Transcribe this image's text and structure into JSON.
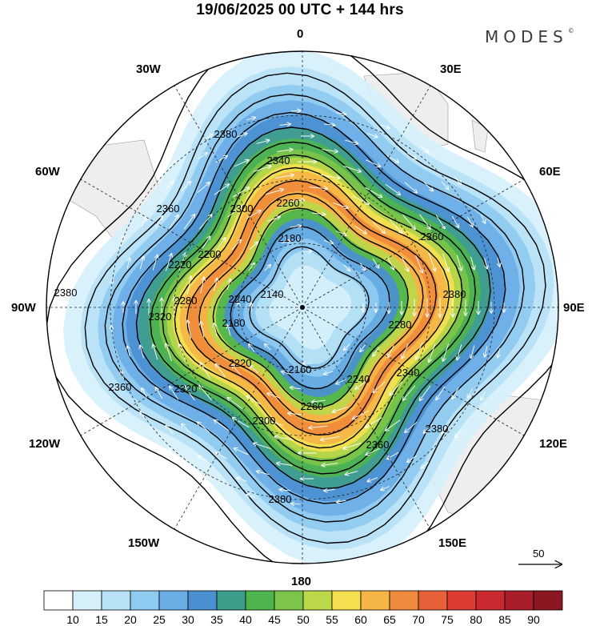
{
  "title": "19/06/2025  00 UTC  + 144 hrs",
  "logo": "MODES",
  "logo_mark": "©",
  "longitude_labels": {
    "top": "0",
    "bottom": "180",
    "left": "90W",
    "right": "90E",
    "upper_left_30": "30W",
    "upper_left_60": "60W",
    "upper_right_30": "30E",
    "upper_right_60": "60E",
    "lower_left_120": "120W",
    "lower_left_150": "150W",
    "lower_right_120": "120E",
    "lower_right_150": "150E"
  },
  "contour_labels": [
    "2140",
    "2160",
    "2180",
    "2200",
    "2220",
    "2240",
    "2260",
    "2280",
    "2300",
    "2320",
    "2340",
    "2360",
    "2380"
  ],
  "reference_vector": {
    "label": "50"
  },
  "colorbar": {
    "labels": [
      "10",
      "15",
      "20",
      "25",
      "30",
      "35",
      "40",
      "45",
      "50",
      "55",
      "60",
      "65",
      "70",
      "75",
      "80",
      "85",
      "90"
    ],
    "colors": [
      "#ffffff",
      "#d6f0fa",
      "#b7e2f6",
      "#8fcaf0",
      "#6aaee6",
      "#4a8fd0",
      "#3e9e8c",
      "#4db44e",
      "#7cc44a",
      "#bbd84a",
      "#f5df4e",
      "#f6b547",
      "#f08a3c",
      "#e8603a",
      "#dc3c34",
      "#c82a30",
      "#a81e2a",
      "#8a1620"
    ]
  },
  "map_values": {
    "speed_bands": [
      15,
      20,
      25,
      30,
      35,
      40,
      45,
      50,
      55,
      60,
      65,
      70
    ],
    "contour_levels": [
      2140,
      2160,
      2180,
      2200,
      2220,
      2240,
      2260,
      2280,
      2300,
      2320,
      2340,
      2360,
      2380
    ]
  }
}
